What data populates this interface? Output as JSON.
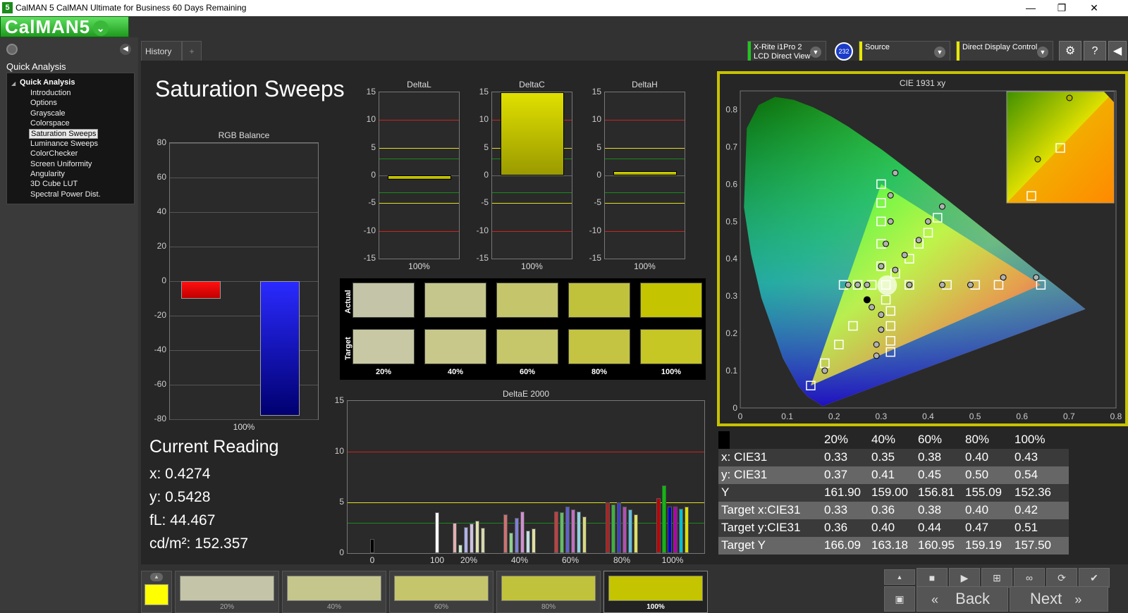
{
  "window": {
    "title": "CalMAN 5 CalMAN Ultimate for Business 60 Days Remaining",
    "app_icon": "5",
    "minimize": "—",
    "maximize": "❐",
    "close": "✕"
  },
  "logo": {
    "text": "CalMAN5",
    "dropdown": "⌄"
  },
  "sidebar": {
    "section_title": "Quick Analysis",
    "root": "Quick Analysis",
    "items": [
      "Introduction",
      "Options",
      "Grayscale",
      "Colorspace",
      "Saturation Sweeps",
      "Luminance Sweeps",
      "ColorChecker",
      "Screen Uniformity",
      "Angularity",
      "3D Cube LUT",
      "Spectral Power Dist."
    ],
    "selected": "Saturation Sweeps"
  },
  "tabs": [
    {
      "label": "History 1"
    },
    {
      "label": "+"
    }
  ],
  "instruments": {
    "meter_line1": "X-Rite i1Pro 2",
    "meter_line2": "LCD Direct View",
    "meter_badge": "232",
    "source": "Source",
    "display": "Direct Display Control"
  },
  "page_title": "Saturation Sweeps",
  "rgb_balance": {
    "title": "RGB Balance",
    "yticks": [
      "80",
      "60",
      "40",
      "20",
      "0",
      "-20",
      "-40",
      "-60",
      "-80"
    ],
    "xlabel": "100%",
    "chart_data": {
      "type": "bar",
      "categories": [
        "R",
        "G",
        "B"
      ],
      "values": [
        -10,
        0,
        -78
      ],
      "ylim": [
        -80,
        80
      ],
      "colors": [
        "#ff0000",
        "#00ff00",
        "#0000ff"
      ]
    }
  },
  "delta_charts": [
    {
      "title": "DeltaL",
      "xlabel": "100%",
      "value": -0.3
    },
    {
      "title": "DeltaC",
      "xlabel": "100%",
      "value": 15
    },
    {
      "title": "DeltaH",
      "xlabel": "100%",
      "value": 0.8
    }
  ],
  "delta_yticks": [
    "15",
    "10",
    "5",
    "0",
    "-5",
    "-10",
    "-15"
  ],
  "swatches": {
    "row_labels": [
      "Actual",
      "Target"
    ],
    "labels": [
      "20%",
      "40%",
      "60%",
      "80%",
      "100%"
    ],
    "actual": [
      "#c4c5a8",
      "#c4c68c",
      "#c5c56c",
      "#c1c23c",
      "#c4c400"
    ],
    "target": [
      "#c8c8a4",
      "#c8c88a",
      "#c6c66b",
      "#c4c442",
      "#c6c625"
    ]
  },
  "deltae": {
    "title": "DeltaE 2000",
    "yticks": [
      "15",
      "10",
      "5",
      "0"
    ],
    "xticks": [
      "0",
      "100",
      "20%",
      "40%",
      "60%",
      "80%",
      "100%"
    ],
    "chart_data": {
      "type": "bar",
      "ylim": [
        0,
        15
      ],
      "groups": [
        {
          "x": "0",
          "values": [
            1.4
          ],
          "colors": [
            "#000000"
          ]
        },
        {
          "x": "100",
          "values": [
            4.0
          ],
          "colors": [
            "#ffffff"
          ]
        },
        {
          "x": "20%",
          "values": [
            3.0,
            0.8,
            2.6,
            2.9,
            3.2,
            2.5
          ],
          "colors": [
            "#e0b0b0",
            "#c8e8c8",
            "#b0b0e8",
            "#d0c0e0",
            "#e0e0b0",
            "#d8d8b0"
          ]
        },
        {
          "x": "40%",
          "values": [
            3.8,
            2.0,
            3.5,
            4.1,
            2.2,
            2.4
          ],
          "colors": [
            "#d07070",
            "#90d090",
            "#8080d8",
            "#d090d0",
            "#c0e0e0",
            "#e0e0a0"
          ]
        },
        {
          "x": "60%",
          "values": [
            4.1,
            4.0,
            4.6,
            4.3,
            4.1,
            3.6
          ],
          "colors": [
            "#c04040",
            "#60c060",
            "#6060d0",
            "#c070c0",
            "#90d0e0",
            "#d8d880"
          ]
        },
        {
          "x": "80%",
          "values": [
            5.0,
            4.8,
            5.0,
            4.6,
            4.3,
            3.8
          ],
          "colors": [
            "#b02020",
            "#40b040",
            "#4040c0",
            "#b050b0",
            "#60c0e0",
            "#e0e060"
          ]
        },
        {
          "x": "100%",
          "values": [
            5.4,
            6.7,
            4.6,
            4.6,
            4.4,
            4.6
          ],
          "colors": [
            "#c00000",
            "#00c000",
            "#0000d0",
            "#b000b0",
            "#00c0d0",
            "#e0e000"
          ]
        }
      ]
    }
  },
  "cie": {
    "title": "CIE 1931 xy",
    "xticks": [
      "0",
      "0.1",
      "0.2",
      "0.3",
      "0.4",
      "0.5",
      "0.6",
      "0.7",
      "0.8"
    ],
    "yticks": [
      "0.8",
      "0.7",
      "0.6",
      "0.5",
      "0.4",
      "0.3",
      "0.2",
      "0.1",
      "0"
    ],
    "chart_data": {
      "type": "scatter",
      "xlim": [
        0,
        0.8
      ],
      "ylim": [
        0,
        0.85
      ],
      "gamut": [
        [
          0.64,
          0.33
        ],
        [
          0.3,
          0.6
        ],
        [
          0.15,
          0.06
        ]
      ],
      "white": [
        0.3127,
        0.329
      ],
      "target_squares": [
        [
          0.15,
          0.06
        ],
        [
          0.18,
          0.12
        ],
        [
          0.21,
          0.17
        ],
        [
          0.24,
          0.22
        ],
        [
          0.3,
          0.6
        ],
        [
          0.3,
          0.55
        ],
        [
          0.3,
          0.5
        ],
        [
          0.3,
          0.44
        ],
        [
          0.3,
          0.38
        ],
        [
          0.22,
          0.33
        ],
        [
          0.25,
          0.33
        ],
        [
          0.28,
          0.33
        ],
        [
          0.31,
          0.33
        ],
        [
          0.36,
          0.33
        ],
        [
          0.44,
          0.33
        ],
        [
          0.5,
          0.33
        ],
        [
          0.55,
          0.33
        ],
        [
          0.64,
          0.33
        ],
        [
          0.31,
          0.29
        ],
        [
          0.32,
          0.26
        ],
        [
          0.32,
          0.22
        ],
        [
          0.32,
          0.18
        ],
        [
          0.32,
          0.15
        ],
        [
          0.33,
          0.36
        ],
        [
          0.36,
          0.4
        ],
        [
          0.38,
          0.44
        ],
        [
          0.4,
          0.47
        ],
        [
          0.42,
          0.51
        ]
      ],
      "measured_circles": [
        [
          0.33,
          0.63
        ],
        [
          0.32,
          0.57
        ],
        [
          0.32,
          0.5
        ],
        [
          0.31,
          0.44
        ],
        [
          0.3,
          0.38
        ],
        [
          0.23,
          0.33
        ],
        [
          0.25,
          0.33
        ],
        [
          0.27,
          0.33
        ],
        [
          0.33,
          0.37
        ],
        [
          0.35,
          0.41
        ],
        [
          0.38,
          0.45
        ],
        [
          0.4,
          0.5
        ],
        [
          0.43,
          0.54
        ],
        [
          0.36,
          0.33
        ],
        [
          0.43,
          0.33
        ],
        [
          0.49,
          0.33
        ],
        [
          0.56,
          0.35
        ],
        [
          0.63,
          0.35
        ],
        [
          0.28,
          0.27
        ],
        [
          0.3,
          0.25
        ],
        [
          0.3,
          0.21
        ],
        [
          0.29,
          0.17
        ],
        [
          0.29,
          0.14
        ],
        [
          0.18,
          0.1
        ]
      ]
    }
  },
  "reading": {
    "title": "Current Reading",
    "x": "x: 0.4274",
    "y": "y: 0.5428",
    "fl": "fL: 44.467",
    "cd": "cd/m²: 152.357"
  },
  "table": {
    "headers": [
      "20%",
      "40%",
      "60%",
      "80%",
      "100%"
    ],
    "rows": [
      {
        "label": "x: CIE31",
        "values": [
          "0.33",
          "0.35",
          "0.38",
          "0.40",
          "0.43"
        ]
      },
      {
        "label": "y: CIE31",
        "values": [
          "0.37",
          "0.41",
          "0.45",
          "0.50",
          "0.54"
        ]
      },
      {
        "label": "Y",
        "values": [
          "161.90",
          "159.00",
          "156.81",
          "155.09",
          "152.36"
        ]
      },
      {
        "label": "Target x:CIE31",
        "values": [
          "0.33",
          "0.36",
          "0.38",
          "0.40",
          "0.42"
        ]
      },
      {
        "label": "Target y:CIE31",
        "values": [
          "0.36",
          "0.40",
          "0.44",
          "0.47",
          "0.51"
        ]
      },
      {
        "label": "Target Y",
        "values": [
          "166.09",
          "163.18",
          "160.95",
          "159.19",
          "157.50"
        ]
      }
    ]
  },
  "progress": {
    "items": [
      {
        "label": "20%",
        "color": "#c4c5a8"
      },
      {
        "label": "40%",
        "color": "#c4c68c"
      },
      {
        "label": "60%",
        "color": "#c5c56c"
      },
      {
        "label": "80%",
        "color": "#c1c23c"
      },
      {
        "label": "100%",
        "color": "#c4c400"
      }
    ],
    "current_color": "#ffff00"
  },
  "nav": {
    "back": "Back",
    "next": "Next",
    "back_glyph": "«",
    "next_glyph": "»"
  }
}
